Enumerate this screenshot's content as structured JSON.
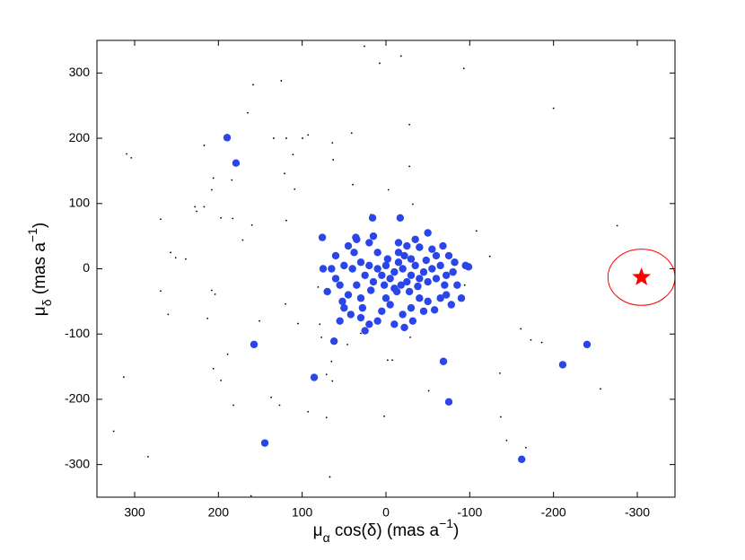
{
  "chart_data": {
    "type": "scatter",
    "xlabel": [
      {
        "text": "μ"
      },
      {
        "text": "α",
        "shift": "sub"
      },
      {
        "text": " cos(δ) (mas a"
      },
      {
        "text": "−1",
        "shift": "super"
      },
      {
        "text": ")"
      }
    ],
    "ylabel": [
      {
        "text": "μ"
      },
      {
        "text": "δ",
        "shift": "sub"
      },
      {
        "text": " (mas a"
      },
      {
        "text": "−1",
        "shift": "super"
      },
      {
        "text": ")"
      }
    ],
    "xlim": [
      345,
      -345
    ],
    "ylim": [
      -350,
      350
    ],
    "xticks": [
      300,
      200,
      100,
      0,
      -100,
      -200,
      -300
    ],
    "yticks": [
      300,
      200,
      100,
      0,
      -100,
      -200,
      -300
    ],
    "series": [
      {
        "color": "#000000",
        "marker": "dot",
        "marker_size": 0.9,
        "x": [
          25.7,
          -18,
          7.5,
          -93,
          158.6,
          125,
          -200,
          165,
          -28,
          134,
          119,
          99.6,
          93,
          64,
          41,
          111,
          63,
          309.6,
          304,
          -28,
          184,
          217,
          206,
          208,
          121,
          109,
          39.6,
          -3,
          -32,
          228,
          217,
          226,
          269,
          197,
          183,
          119,
          18,
          160,
          171,
          257,
          239,
          251,
          -108,
          -124,
          -276,
          -63,
          -94,
          269,
          208,
          204,
          260,
          213,
          151,
          120,
          105,
          81,
          79,
          77,
          30,
          -29,
          -161,
          -173,
          -186,
          206,
          197,
          189,
          137,
          127,
          65,
          71,
          64,
          -2,
          -7.5,
          93,
          71,
          2,
          -51,
          -137,
          -136,
          -144,
          -167,
          -256,
          313,
          284,
          325,
          182,
          67,
          161,
          46
        ],
        "values": [
          341,
          326,
          315,
          307,
          282,
          288,
          246,
          239,
          221,
          200,
          200,
          200,
          205,
          193,
          208,
          175,
          167,
          176,
          170,
          157,
          136,
          189,
          139,
          121,
          146,
          122,
          129,
          121,
          99,
          95,
          95,
          88,
          76,
          78,
          77,
          74,
          83,
          67,
          44,
          25,
          15,
          17,
          58,
          19,
          66,
          22,
          -25,
          -34,
          -33,
          -39,
          -70,
          -76,
          -80,
          -54,
          -84,
          -28,
          -85,
          -105,
          -99,
          -105,
          -92,
          -109,
          -113,
          -153,
          -171,
          -131,
          -197,
          -209,
          -142,
          -162,
          -172,
          -140,
          -140,
          -219,
          -228,
          -226,
          -187,
          -227,
          -160,
          -263,
          -274,
          -184,
          -166,
          -288,
          -249,
          -209,
          -319,
          -348,
          -116
        ]
      },
      {
        "color": "#2a45e8",
        "marker": "circle",
        "marker_size": 4.2,
        "x": [
          -10,
          -20,
          -30,
          -5,
          -25,
          0,
          -15,
          -35,
          -40,
          5,
          -18,
          10,
          -45,
          -10,
          -22,
          15,
          -50,
          -30,
          -2,
          -38,
          2,
          -13,
          -55,
          20,
          -28,
          18,
          -48,
          -60,
          25,
          -15,
          30,
          35,
          -65,
          -70,
          -60,
          40,
          -40,
          0,
          -25,
          10,
          45,
          -72,
          -50,
          30,
          -30,
          -5,
          -55,
          50,
          -75,
          38,
          55,
          -15,
          20,
          -35,
          28,
          -65,
          60,
          -80,
          5,
          -20,
          52,
          -72,
          -45,
          42,
          -85,
          -82,
          30,
          65,
          45,
          -68,
          -58,
          -10,
          -22,
          20,
          10,
          70,
          -90,
          50,
          -78,
          60,
          -40,
          15,
          35,
          75,
          -95,
          -50,
          25,
          -32,
          55,
          189.6,
          179,
          157.5,
          144.6,
          85.7,
          76,
          62,
          -162,
          -211,
          -240,
          -68.6,
          -75,
          -98.6,
          -17,
          16,
          36
        ],
        "values": [
          -5,
          0,
          -10,
          -15,
          -20,
          5,
          10,
          5,
          -15,
          -10,
          -25,
          0,
          -5,
          -30,
          20,
          -20,
          -20,
          15,
          15,
          -27,
          -25,
          -35,
          0,
          5,
          -35,
          -33,
          13,
          -15,
          -10,
          25,
          10,
          -25,
          5,
          -25,
          20,
          0,
          -45,
          -45,
          35,
          25,
          -40,
          -10,
          -50,
          -45,
          -60,
          -55,
          30,
          5,
          20,
          25,
          -25,
          40,
          40,
          45,
          -60,
          -45,
          -15,
          -5,
          -65,
          -70,
          -50,
          -40,
          -65,
          -70,
          -25,
          10,
          -75,
          0,
          35,
          35,
          -63,
          -85,
          -90,
          -85,
          -80,
          -35,
          -45,
          -60,
          -55,
          20,
          33,
          50,
          45,
          0,
          5,
          55,
          -95,
          -80,
          -80,
          201,
          162,
          -116,
          -267,
          -166.5,
          48,
          -111,
          -292,
          -147,
          -116,
          -142,
          -204,
          3,
          78,
          78,
          48
        ]
      },
      {
        "color": "#ff0000",
        "marker": "star",
        "marker_size": 11,
        "x": [
          -305
        ],
        "values": [
          -13
        ]
      }
    ],
    "ellipse": {
      "x": -305,
      "y": -13,
      "rx": 40,
      "ry": 43,
      "color": "#ff0000"
    }
  }
}
